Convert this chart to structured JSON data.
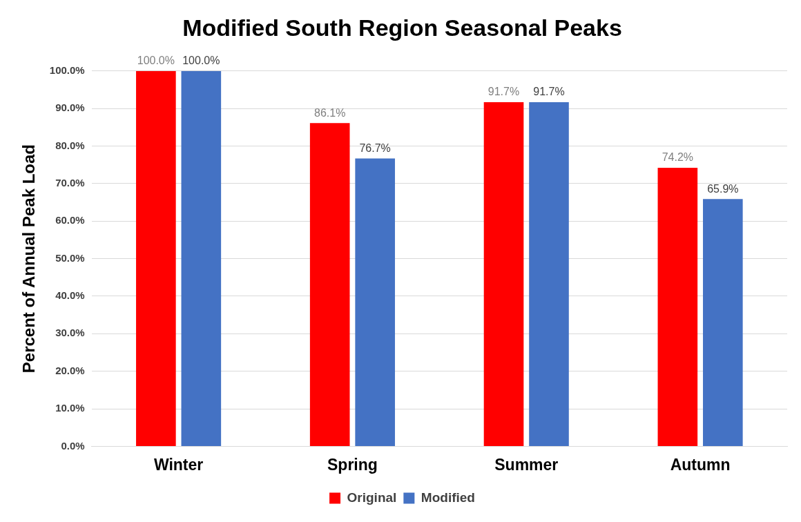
{
  "chart_data": {
    "type": "bar",
    "title": "Modified South Region Seasonal Peaks",
    "ylabel": "Percent of Annual Peak Load",
    "categories": [
      "Winter",
      "Spring",
      "Summer",
      "Autumn"
    ],
    "series": [
      {
        "name": "Original",
        "color": "#ff0000",
        "values": [
          100.0,
          86.1,
          91.7,
          74.2
        ],
        "value_labels": [
          "100.0%",
          "86.1%",
          "91.7%",
          "74.2%"
        ]
      },
      {
        "name": "Modified",
        "color": "#4472c4",
        "values": [
          100.0,
          76.7,
          91.7,
          65.9
        ],
        "value_labels": [
          "100.0%",
          "76.7%",
          "91.7%",
          "65.9%"
        ]
      }
    ],
    "ylim": [
      0,
      100
    ],
    "yticks": [
      {
        "value": 0,
        "label": "0.0%"
      },
      {
        "value": 10,
        "label": "10.0%"
      },
      {
        "value": 20,
        "label": "20.0%"
      },
      {
        "value": 30,
        "label": "30.0%"
      },
      {
        "value": 40,
        "label": "40.0%"
      },
      {
        "value": 50,
        "label": "50.0%"
      },
      {
        "value": 60,
        "label": "60.0%"
      },
      {
        "value": 70,
        "label": "70.0%"
      },
      {
        "value": 80,
        "label": "80.0%"
      },
      {
        "value": 90,
        "label": "90.0%"
      },
      {
        "value": 100,
        "label": "100.0%"
      }
    ],
    "grid": "y",
    "legend": "bottom"
  }
}
